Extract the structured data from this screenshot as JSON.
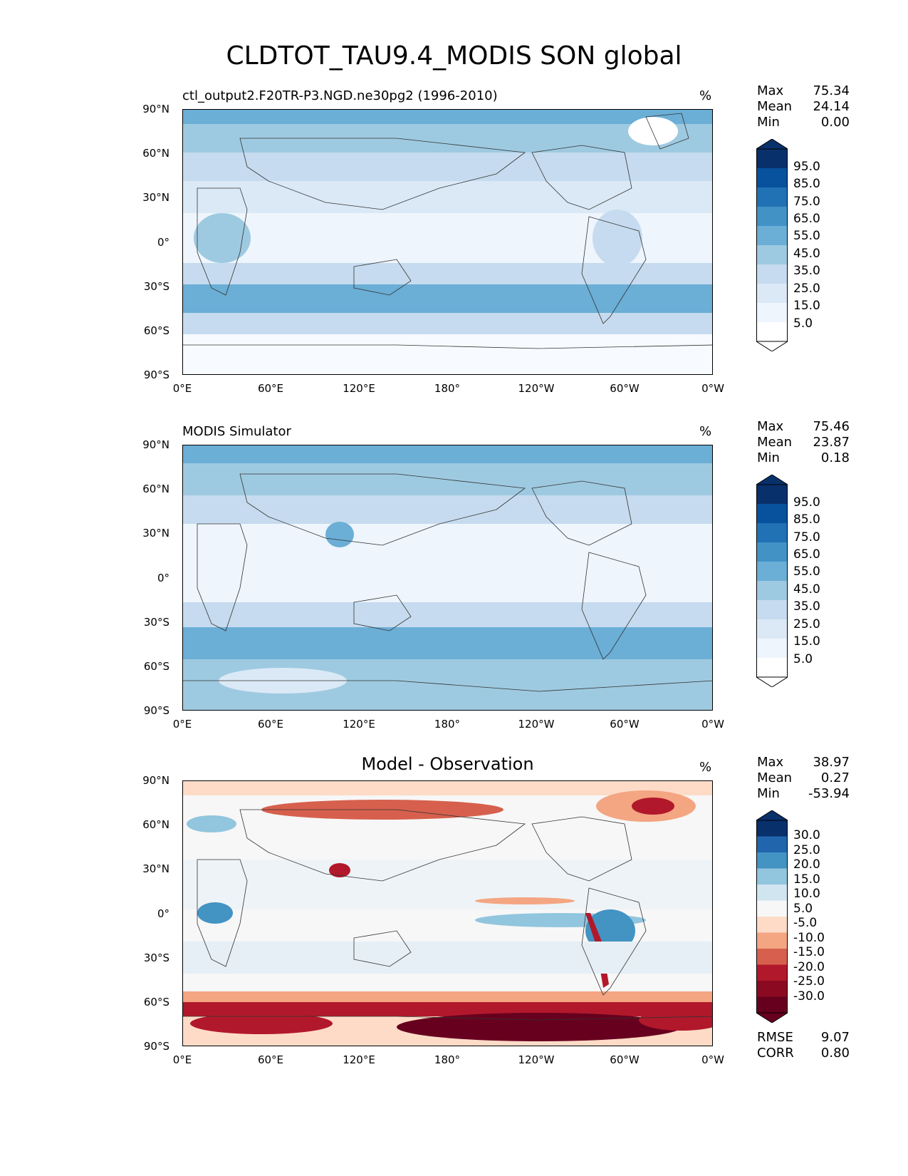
{
  "title": "CLDTOT_TAU9.4_MODIS SON global",
  "panels": [
    {
      "title": "ctl_output2.F20TR-P3.NGD.ne30pg2 (1996-2010)",
      "units": "%",
      "stats": {
        "max_label": "Max",
        "max": "75.34",
        "mean_label": "Mean",
        "mean": "24.14",
        "min_label": "Min",
        "min": "0.00"
      },
      "colorbar": {
        "labels": [
          "95.0",
          "85.0",
          "75.0",
          "65.0",
          "55.0",
          "45.0",
          "35.0",
          "25.0",
          "15.0",
          "5.0"
        ],
        "colors": [
          "#08306b",
          "#08519c",
          "#2171b5",
          "#4292c6",
          "#6baed6",
          "#9ecae1",
          "#c6dbef",
          "#dbe9f6",
          "#eef5fc",
          "#ffffff"
        ]
      }
    },
    {
      "title": "MODIS Simulator",
      "units": "%",
      "stats": {
        "max_label": "Max",
        "max": "75.46",
        "mean_label": "Mean",
        "mean": "23.87",
        "min_label": "Min",
        "min": "0.18"
      },
      "colorbar": {
        "labels": [
          "95.0",
          "85.0",
          "75.0",
          "65.0",
          "55.0",
          "45.0",
          "35.0",
          "25.0",
          "15.0",
          "5.0"
        ],
        "colors": [
          "#08306b",
          "#08519c",
          "#2171b5",
          "#4292c6",
          "#6baed6",
          "#9ecae1",
          "#c6dbef",
          "#dbe9f6",
          "#eef5fc",
          "#ffffff"
        ]
      }
    },
    {
      "title": "Model - Observation",
      "units": "%",
      "stats": {
        "max_label": "Max",
        "max": "38.97",
        "mean_label": "Mean",
        "mean": "0.27",
        "min_label": "Min",
        "min": "-53.94"
      },
      "colorbar": {
        "labels": [
          "30.0",
          "25.0",
          "20.0",
          "15.0",
          "10.0",
          "5.0",
          "-5.0",
          "-10.0",
          "-15.0",
          "-20.0",
          "-25.0",
          "-30.0"
        ],
        "colors": [
          "#08306b",
          "#2166ac",
          "#4393c3",
          "#92c5de",
          "#d1e5f0",
          "#f7f7f7",
          "#fddbc7",
          "#f4a582",
          "#d6604d",
          "#b2182b",
          "#8b0a22",
          "#67001f"
        ]
      },
      "rmse_label": "RMSE",
      "rmse": "9.07",
      "corr_label": "CORR",
      "corr": "0.80"
    }
  ],
  "lat_ticks": [
    "90°N",
    "60°N",
    "30°N",
    "0°",
    "30°S",
    "60°S",
    "90°S"
  ],
  "lon_ticks": [
    "0°E",
    "60°E",
    "120°E",
    "180°",
    "120°W",
    "60°W",
    "0°W"
  ]
}
